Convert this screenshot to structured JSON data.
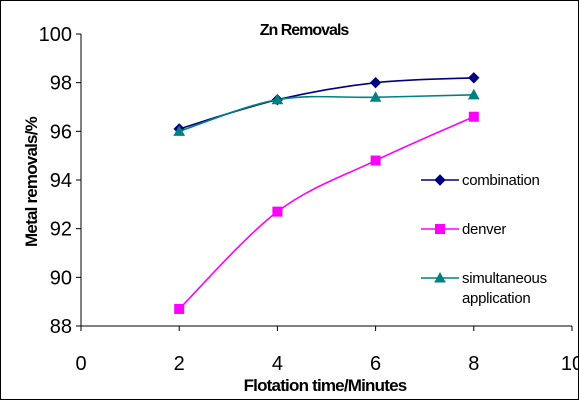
{
  "chart_data": {
    "type": "line",
    "title": "Zn Removals",
    "xlabel": "Flotation time/Minutes",
    "ylabel": "Metal removals/%",
    "xlim": [
      0,
      10
    ],
    "ylim": [
      88,
      100
    ],
    "x_ticks": [
      "0",
      "2",
      "4",
      "6",
      "8",
      "10"
    ],
    "y_ticks": [
      "88",
      "90",
      "92",
      "94",
      "96",
      "98",
      "100"
    ],
    "grid": false,
    "legend_position": "right",
    "series": [
      {
        "name": "combination",
        "marker": "diamond",
        "color": "#000080",
        "x": [
          2,
          4,
          6,
          8
        ],
        "y": [
          96.1,
          97.3,
          98.0,
          98.2
        ]
      },
      {
        "name": "denver",
        "marker": "square",
        "color": "#ff00ff",
        "x": [
          2,
          4,
          6,
          8
        ],
        "y": [
          88.7,
          92.7,
          94.8,
          96.6
        ]
      },
      {
        "name": "simultaneous application",
        "name_lines": [
          "simultaneous",
          "application"
        ],
        "marker": "triangle",
        "color": "#008080",
        "x": [
          2,
          4,
          6,
          8
        ],
        "y": [
          96.0,
          97.3,
          97.4,
          97.5
        ]
      }
    ]
  }
}
